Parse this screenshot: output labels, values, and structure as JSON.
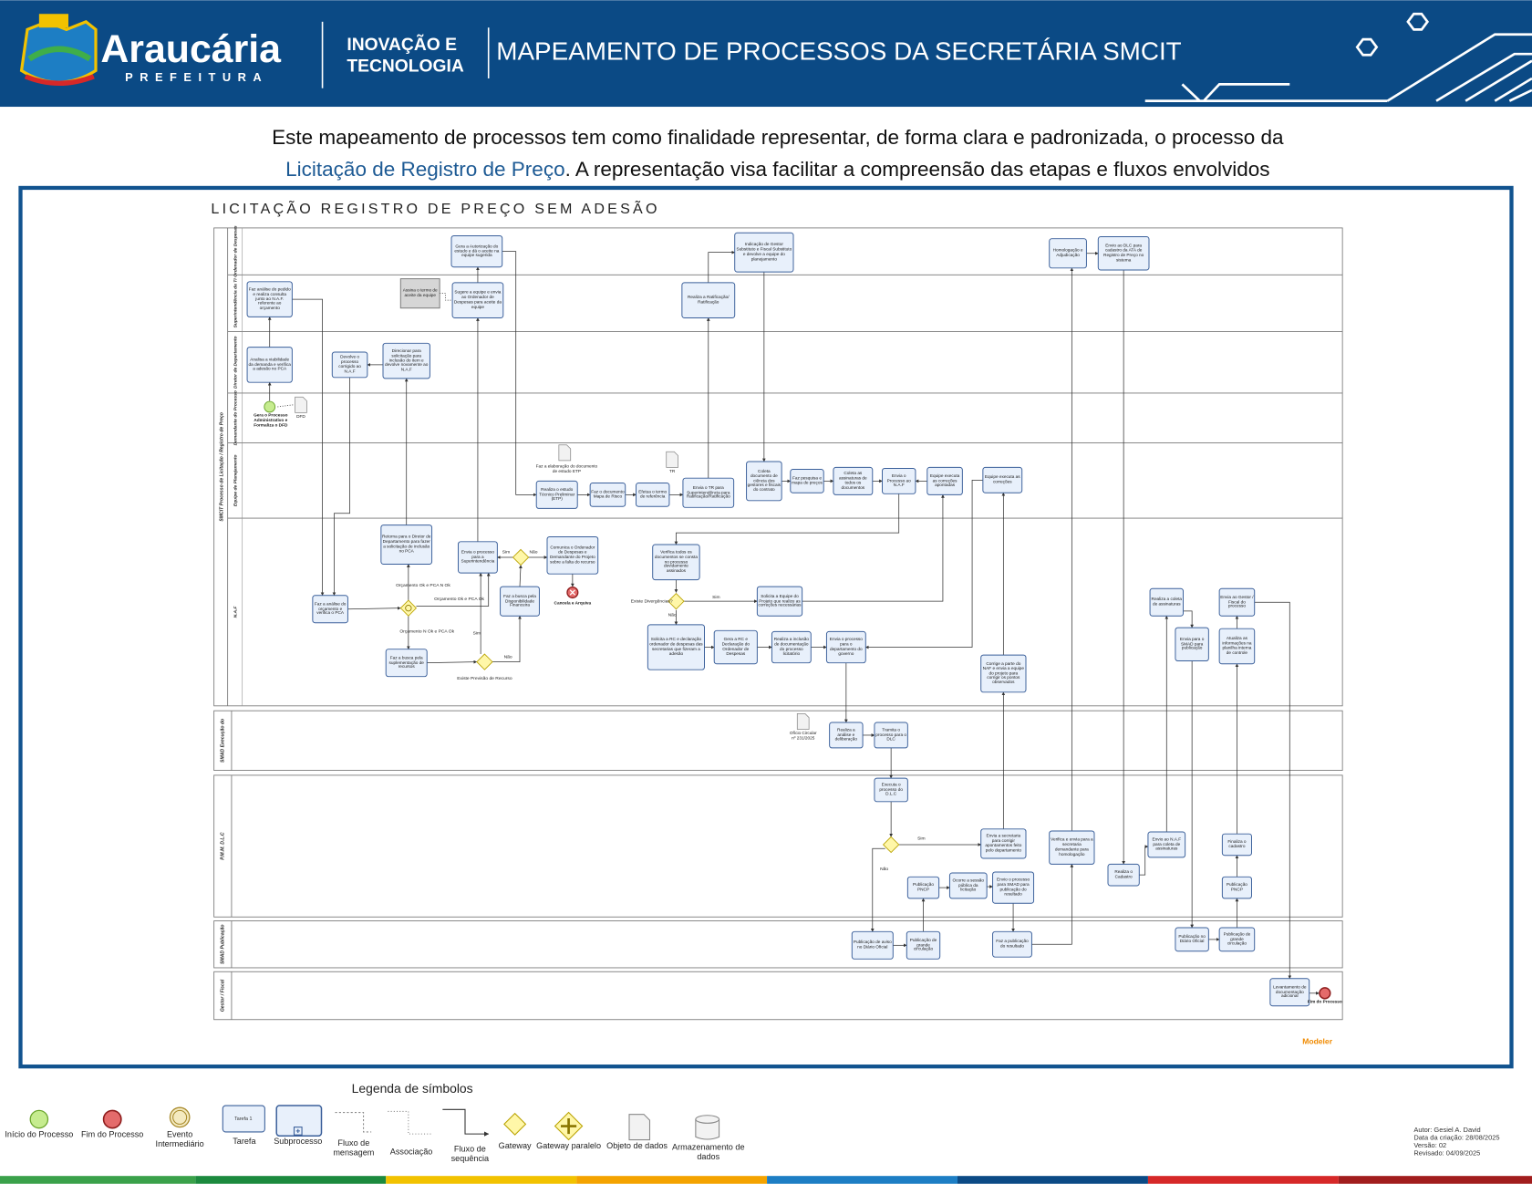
{
  "header": {
    "brand": "Araucária",
    "brand_sub": "PREFEITURA",
    "unit": [
      "INOVAÇÃO E",
      "TECNOLOGIA"
    ],
    "title": "MAPEAMENTO DE PROCESSOS DA SECRETÁRIA SMCIT"
  },
  "intro": {
    "line1": "Este mapeamento de processos tem como finalidade representar, de forma clara e padronizada, o processo da",
    "highlight": "Licitação de Registro de Preço",
    "line2_rest": ". A representação visa facilitar a compreensão das etapas e fluxos envolvidos"
  },
  "diagram": {
    "title": "LICITAÇÃO REGISTRO DE PREÇO SEM ADESÃO",
    "pools": [
      {
        "label": "SMCIT Processo de Licitação / Registro de Preço",
        "lanes": [
          "Ordenador de Despesas",
          "Superintendência da TI",
          "Diretor de Departamento",
          "Demandante do Processo",
          "Equipe de Planejamento",
          "N.A.F"
        ]
      },
      {
        "label": "SMAD Execução do",
        "lanes": []
      },
      {
        "label": "P.M.M. D.L.C",
        "lanes": []
      },
      {
        "label": "SMAD Publicação",
        "lanes": []
      },
      {
        "label": "Gestor / Fiscal",
        "lanes": []
      }
    ],
    "tasks": [
      "Gera a Autorização do estudo e dá o aceite na equipe sugerida",
      "Indicação de Gestor Substituto e Fiscal Substituto e devolve a equipe do planejamento",
      "Homologação e Adjudicação",
      "Envio ao DLC para cadastro da ATA de Registro de Preço no sistema",
      "Faz análise do pedido e realiza consulta junto ao N.A.F. referente ao orçamento",
      "Assina o termo de aceite da equipe",
      "Sugere a equipe e envia ao Ordenador de Despesas para aceite da equipe",
      "Realiza a Ratificação/ Ratificação",
      "Analisa a viabilidade da demanda e verifica a adesão no PCA",
      "Devolve o processo corrigido ao N.A.F",
      "Direcionar para solicitação para inclusão do item e devolve novamente ao N.A.F",
      "Realiza o estudo Técnico Preliminar (ETP)",
      "Faz o documento Mapa de Risco",
      "Efetua o termo de referência",
      "Envia o TR para Superintendência para Ratificação/Ratificação",
      "Coleta documento de ciência dos gestores e fiscais do contrato",
      "Faz pesquisa e mapa de preços",
      "Coleta as assinaturas de todos os documentos",
      "Envia o Processo ao N.A.F",
      "Equipe executa as correções apontadas",
      "Equipe executa as correções",
      "Retorna para o Diretor de Departamento para fazer a solicitação de inclusão no PCA",
      "Envia o processo para a Superintendência",
      "Comunica o Ordenador de Despesas e Demandante do Projeto sobre a falta do recurso",
      "Verifica todos os documentos se consta no processo devidamente assinados",
      "Faz a análise do orçamento e verifica o PCA",
      "Faz a busca pela Disponibilidade Financeira",
      "Solicita a Equipe do Projeto que realize as correções necessárias",
      "Faz a busca pela suplementação de recursos",
      "Solicita a RC e declaração ordenador de despesas das secretarias que fizeram a adesão",
      "Gera a RC e Declaração do Ordenador de Despesas",
      "Realiza a inclusão de documentação do processo licitatório",
      "Envia o processo para o departamento do governo",
      "Corrige a parte do NAF e envia a equipe do projeto para corrigir os pontos observados",
      "Realiza a coleta de assinaturas",
      "Envia ao Gestor / Fiscal do processo",
      "Envia para o SMAD para publicação",
      "Atualiza as informações na planilha interna de controle",
      "Realiza a análise e deliberação",
      "Tramita o processo para o DLC",
      "Executa o processo do D.L.C",
      "Envia a secretaria para corrigir apontamentos feito pelo departamento",
      "Verifica e envia para a secretaria demandante para homologação",
      "Realiza o Cadastro",
      "Envio ao N.A.F para coleta de assinaturas",
      "Finaliza o cadastro",
      "Publicação PNCP",
      "Ocorre a sessão pública da licitação",
      "Envio o processo para SMAD para publicação do resultado",
      "Publicação PNCP",
      "Publicação de aviso no Diário Oficial",
      "Publicação de grande circulação",
      "Faz a publicação do resultado",
      "Publicação no Diário Oficial",
      "Publicação de grande circulação",
      "Levantamento de documentação adicional"
    ],
    "events": [
      "Gera o Processo Administrativo e Formaliza o DFD",
      "Cancela e Arquiva",
      "Fim do Processo"
    ],
    "data_objects": [
      "DFD",
      "Faz a elaboração do documento de estudo ETP",
      "TR",
      "Ofício Circular nº 231/2025"
    ],
    "flow_labels": [
      "Sim",
      "Não",
      "Orçamento Ok e PCA N Ok",
      "Orçamento Ok e PCA Ok",
      "Orçamento N Ok e PCA Ok",
      "Sim",
      "Não",
      "Existe Previsão de Recurso",
      "Existe Divergências?",
      "Sim",
      "Não",
      "Sim",
      "Não"
    ],
    "branding": "Modeler"
  },
  "legend": {
    "title": "Legenda de símbolos",
    "task_sample": "Tarefa 1",
    "items": [
      "Início do Processo",
      "Fim do Processo",
      "Evento Intermediário",
      "Tarefa",
      "Subprocesso",
      "Fluxo de mensagem",
      "Associação",
      "Fluxo de sequência",
      "Gateway",
      "Gateway paralelo",
      "Objeto de dados",
      "Armazenamento de dados"
    ]
  },
  "credits": [
    "Autor: Gesiel A. David",
    "Data da criação: 28/08/2025",
    "Versão: 02",
    "Revisado: 04/09/2025"
  ]
}
